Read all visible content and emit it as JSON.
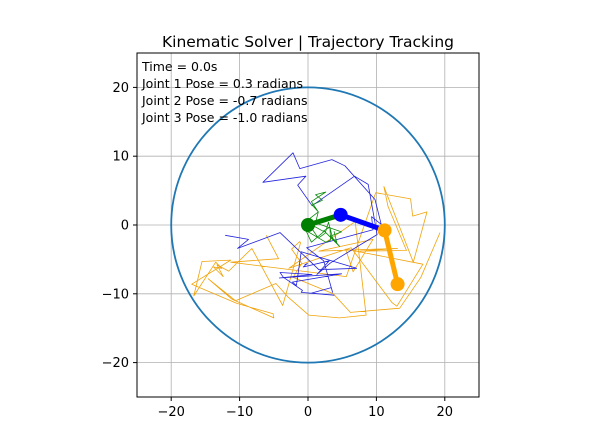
{
  "chart_data": {
    "type": "line",
    "title": "Kinematic Solver | Trajectory Tracking",
    "xlabel": "",
    "ylabel": "",
    "xlim": [
      -25,
      25
    ],
    "ylim": [
      -25,
      25
    ],
    "grid": true,
    "xticks": [
      -20,
      -10,
      0,
      10,
      20
    ],
    "yticks": [
      -20,
      -10,
      0,
      10,
      20
    ],
    "xtick_labels": [
      "−20",
      "−10",
      "0",
      "10",
      "20"
    ],
    "ytick_labels": [
      "−20",
      "−10",
      "0",
      "10",
      "20"
    ],
    "annotations": [
      "Time = 0.0s",
      "Joint 1 Pose = 0.3 radians",
      "Joint 2 Pose = -0.7 radians",
      "Joint 3 Pose = -1.0 radians"
    ],
    "workspace_circle": {
      "center": [
        0,
        0
      ],
      "radius": 20,
      "color": "#1f77b4"
    },
    "series": [
      {
        "name": "joint3-trajectory",
        "color": "#f0a30a",
        "points": [
          [
            -6.1,
            -1.5
          ],
          [
            -4.3,
            -4.9
          ],
          [
            -11.3,
            -5.4
          ],
          [
            5.6,
            -7.5
          ],
          [
            9.9,
            4.7
          ],
          [
            15,
            3.8
          ],
          [
            15.3,
            1.3
          ],
          [
            17.4,
            1.9
          ],
          [
            15.4,
            -5.4
          ],
          [
            11.6,
            4.3
          ],
          [
            11.1,
            5.6
          ],
          [
            11.7,
            2.7
          ],
          [
            14.4,
            -3.7
          ],
          [
            7.6,
            -3.8
          ],
          [
            13.1,
            -3.4
          ],
          [
            1.6,
            -3.8
          ],
          [
            9.5,
            -2.1
          ],
          [
            6.6,
            -6.8
          ],
          [
            5.5,
            -3.5
          ],
          [
            16.8,
            -5.7
          ],
          [
            13,
            -11.8
          ],
          [
            12.3,
            -11.3
          ],
          [
            6.3,
            -3.3
          ],
          [
            -2.8,
            -6.3
          ],
          [
            6.9,
            0.5
          ],
          [
            8.5,
            -13.1
          ],
          [
            4.6,
            -13.5
          ],
          [
            0.1,
            -13.1
          ],
          [
            -2.9,
            -10.5
          ],
          [
            -4.7,
            -8.5
          ],
          [
            -10.6,
            -11
          ],
          [
            -14.6,
            -7.8
          ],
          [
            -11.1,
            -10.8
          ],
          [
            -5,
            -13.5
          ],
          [
            -5.1,
            -12.9
          ],
          [
            -7.6,
            -12.2
          ],
          [
            -10.4,
            -11.4
          ],
          [
            -17,
            -8.6
          ],
          [
            -11.3,
            -5.1
          ],
          [
            -15.5,
            -5.3
          ],
          [
            -16.7,
            -10.3
          ],
          [
            -13.5,
            -5.4
          ],
          [
            -12.6,
            -6.3
          ],
          [
            -13.8,
            -6.1
          ],
          [
            -12.4,
            -7.5
          ],
          [
            -13.3,
            -5.8
          ],
          [
            -11.6,
            -6.7
          ],
          [
            -8.2,
            -3.4
          ],
          [
            -3.7,
            -11.7
          ],
          [
            -1.1,
            -2.6
          ],
          [
            -1.2,
            -2.4
          ],
          [
            -2.4,
            -3.5
          ],
          [
            -0.9,
            -5.6
          ],
          [
            -2.2,
            -7.6
          ],
          [
            3.7,
            -10
          ],
          [
            6.2,
            -12.7
          ],
          [
            13.4,
            -12.1
          ],
          [
            16.5,
            -7.6
          ],
          [
            19.3,
            -1.1
          ]
        ]
      },
      {
        "name": "joint2-trajectory",
        "color": "#2222dd",
        "points": [
          [
            -12.1,
            -1.5
          ],
          [
            -8.7,
            -2.1
          ],
          [
            -10.3,
            -3.4
          ],
          [
            -4.1,
            -1.1
          ],
          [
            1.6,
            -6.5
          ],
          [
            7.1,
            -6.3
          ],
          [
            -1,
            -3.9
          ],
          [
            -1.7,
            -8.8
          ],
          [
            -2.3,
            -8.3
          ],
          [
            4.9,
            -7.1
          ],
          [
            -4.2,
            -7.7
          ],
          [
            0.6,
            -7.2
          ],
          [
            -4.1,
            -6.9
          ],
          [
            -3.6,
            -7.6
          ],
          [
            -0.8,
            -9.5
          ],
          [
            -1,
            -9.8
          ],
          [
            3.8,
            -10.2
          ],
          [
            0.5,
            -9.9
          ],
          [
            3.4,
            -9.1
          ],
          [
            3.6,
            -9.8
          ],
          [
            2.3,
            -5.2
          ],
          [
            -0.2,
            -3.3
          ],
          [
            9.5,
            -0.7
          ],
          [
            9.3,
            1.2
          ],
          [
            10.7,
            0.1
          ],
          [
            9.8,
            3.7
          ],
          [
            5.4,
            8.6
          ],
          [
            3.5,
            9.5
          ],
          [
            -1.2,
            8.2
          ],
          [
            -2.2,
            10.5
          ],
          [
            -6.6,
            6.2
          ],
          [
            -0.3,
            7.1
          ],
          [
            -1.5,
            5.8
          ],
          [
            0.6,
            2.8
          ],
          [
            6.8,
            7.1
          ],
          [
            8.8,
            5.9
          ],
          [
            10.1,
            -1.4
          ],
          [
            3.3,
            -5.5
          ],
          [
            1.3,
            -7.2
          ],
          [
            3.1,
            -5.2
          ],
          [
            -0.7,
            -6.1
          ],
          [
            -0.1,
            -5.6
          ],
          [
            -0.5,
            -5.8
          ]
        ]
      },
      {
        "name": "joint1-trajectory",
        "color": "#0a8a0a",
        "points": [
          [
            0.2,
            0.2
          ],
          [
            2.2,
            -0.9
          ],
          [
            3.2,
            -0.3
          ],
          [
            3.3,
            -2.2
          ],
          [
            2.6,
            -2.5
          ],
          [
            -0.3,
            -0.8
          ],
          [
            0.5,
            -2.5
          ],
          [
            2.4,
            -0.9
          ],
          [
            4.6,
            -3.1
          ],
          [
            3.3,
            -1.6
          ],
          [
            4.9,
            -1
          ],
          [
            1.1,
            0.3
          ],
          [
            1.5,
            1.9
          ],
          [
            0.6,
            2.9
          ],
          [
            2.1,
            3.6
          ],
          [
            1.1,
            4.4
          ],
          [
            2.6,
            4.8
          ],
          [
            0.5,
            3.4
          ],
          [
            1.5,
            1.9
          ],
          [
            -0.2,
            0.6
          ],
          [
            1.5,
            -1.9
          ],
          [
            2.5,
            -1.2
          ],
          [
            3,
            0.4
          ],
          [
            3.6,
            -1.9
          ],
          [
            4.2,
            -2.5
          ],
          [
            3.8,
            -0.9
          ]
        ]
      }
    ],
    "arm": {
      "links": [
        {
          "name": "link-1",
          "from": [
            0,
            0
          ],
          "to": [
            4.78,
            1.48
          ],
          "color": "#008000"
        },
        {
          "name": "link-2",
          "from": [
            4.78,
            1.48
          ],
          "to": [
            11.2,
            -0.78
          ],
          "color": "#0000ff"
        },
        {
          "name": "link-3",
          "from": [
            11.2,
            -0.78
          ],
          "to": [
            13.1,
            -8.6
          ],
          "color": "#ffa500"
        }
      ],
      "joints": [
        {
          "name": "base-joint",
          "at": [
            0,
            0
          ],
          "color": "#008000"
        },
        {
          "name": "joint-2",
          "at": [
            4.78,
            1.48
          ],
          "color": "#0000ff"
        },
        {
          "name": "joint-3",
          "at": [
            11.2,
            -0.78
          ],
          "color": "#ffa500"
        },
        {
          "name": "end-effector",
          "at": [
            13.1,
            -8.6
          ],
          "color": "#ffa500"
        }
      ]
    }
  }
}
